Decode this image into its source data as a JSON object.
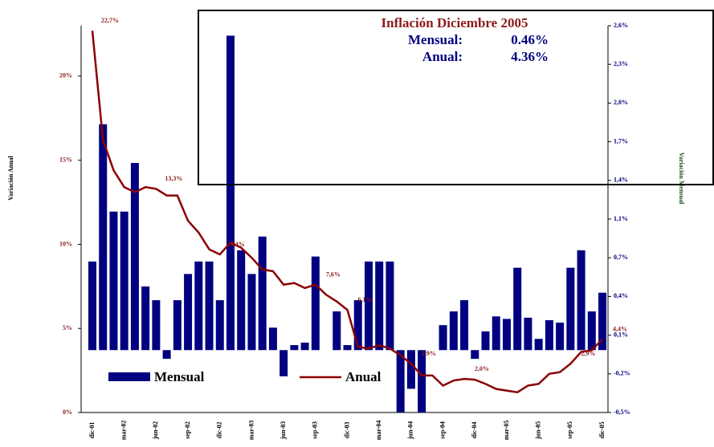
{
  "chart_data": {
    "type": "bar_line",
    "y_label": "Variación Anual",
    "y2_label": "Variación Mensual",
    "annotation": {
      "title": "Inflación Diciembre 2005",
      "rows": [
        {
          "label": "Mensual:",
          "value": "0.46%"
        },
        {
          "label": "Anual:",
          "value": "4.36%"
        }
      ]
    },
    "categories": [
      "dic-01",
      null,
      null,
      "mar-02",
      null,
      null,
      "jun-02",
      null,
      null,
      "sep-02",
      null,
      null,
      "dic-02",
      null,
      null,
      "mar-03",
      null,
      null,
      "jun-03",
      null,
      null,
      "sep-03",
      null,
      null,
      "dic-03",
      null,
      null,
      "mar-04",
      null,
      null,
      "jun-04",
      null,
      null,
      "sep-04",
      null,
      null,
      "dic-04",
      null,
      null,
      "mar-05",
      null,
      null,
      "jun-05",
      null,
      null,
      "sep-05",
      null,
      null,
      "dic-05"
    ],
    "series": [
      {
        "name": "Mensual",
        "type": "bar",
        "axis": "y2",
        "color": "#000080",
        "values": [
          0.71,
          1.81,
          1.11,
          1.11,
          1.5,
          0.51,
          0.4,
          -0.07,
          0.4,
          0.61,
          0.71,
          0.71,
          0.4,
          2.52,
          0.8,
          0.61,
          0.91,
          0.18,
          -0.21,
          0.04,
          0.06,
          0.75,
          0,
          0.31,
          0.04,
          0.4,
          0.71,
          0.71,
          0.71,
          -0.5,
          -0.31,
          -0.5,
          0,
          0.2,
          0.31,
          0.4,
          -0.07,
          0.15,
          0.27,
          0.25,
          0.66,
          0.26,
          0.09,
          0.24,
          0.22,
          0.66,
          0.8,
          0.31,
          0.46
        ]
      },
      {
        "name": "Anual",
        "type": "line",
        "axis": "y",
        "color": "#8b0000",
        "values": [
          22.7,
          16.2,
          14.4,
          13.4,
          13.1,
          13.4,
          13.3,
          12.9,
          12.9,
          11.4,
          10.7,
          9.7,
          9.4,
          10.1,
          9.8,
          9.2,
          8.5,
          8.4,
          7.6,
          7.7,
          7.4,
          7.6,
          7.0,
          6.6,
          6.1,
          3.9,
          3.8,
          4.0,
          3.8,
          3.4,
          2.9,
          2.2,
          2.2,
          1.6,
          1.9,
          2.0,
          1.95,
          1.7,
          1.4,
          1.3,
          1.2,
          1.6,
          1.7,
          2.3,
          2.4,
          2.9,
          3.6,
          3.7,
          4.36
        ],
        "value_labels": [
          "22,7%",
          null,
          null,
          null,
          null,
          null,
          "13,3%",
          null,
          null,
          null,
          null,
          null,
          "9,4%",
          null,
          null,
          null,
          null,
          null,
          null,
          null,
          null,
          "7,6%",
          null,
          null,
          "6,1%",
          null,
          null,
          null,
          null,
          null,
          "2,9%",
          null,
          null,
          null,
          null,
          "2,0%",
          null,
          null,
          null,
          null,
          null,
          null,
          null,
          null,
          null,
          "2,9%",
          null,
          null,
          "4,4%"
        ]
      }
    ],
    "ylim": [
      0,
      23
    ],
    "yticks": [
      {
        "value": 0,
        "label": "0%"
      },
      {
        "value": 5,
        "label": "5%"
      },
      {
        "value": 10,
        "label": "10%"
      },
      {
        "value": 15,
        "label": "15%"
      },
      {
        "value": 20,
        "label": "20%"
      }
    ],
    "y2lim": [
      -0.5,
      2.6
    ],
    "y2ticks": [
      {
        "value": -0.5,
        "label": "-0,5%"
      },
      {
        "value": -0.19,
        "label": "-0,2%"
      },
      {
        "value": 0.12,
        "label": "0,1%"
      },
      {
        "value": 0.43,
        "label": "0,4%"
      },
      {
        "value": 0.74,
        "label": "0,7%"
      },
      {
        "value": 1.05,
        "label": "1,1%"
      },
      {
        "value": 1.36,
        "label": "1,4%"
      },
      {
        "value": 1.67,
        "label": "1,7%"
      },
      {
        "value": 1.98,
        "label": "2,0%"
      },
      {
        "value": 2.29,
        "label": "2,3%"
      },
      {
        "value": 2.6,
        "label": "2,6%"
      }
    ]
  }
}
